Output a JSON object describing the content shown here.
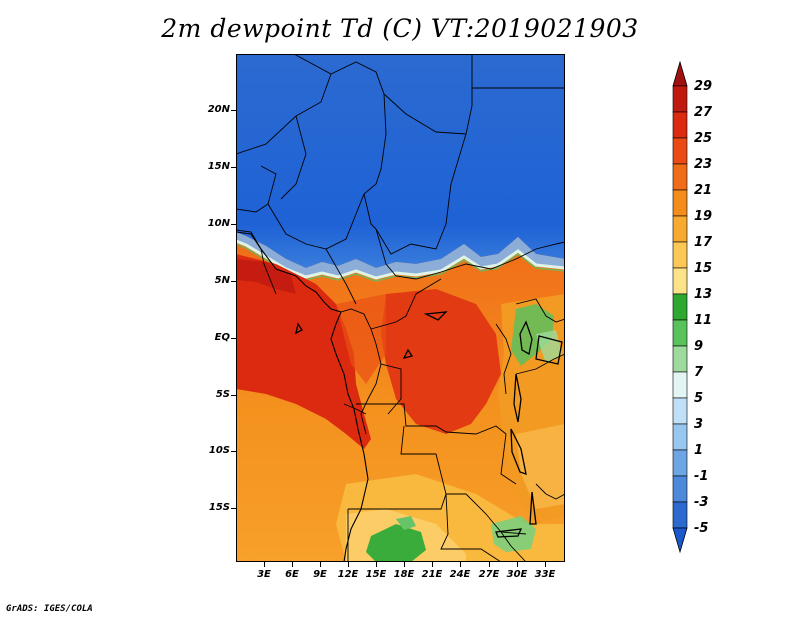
{
  "title": "2m dewpoint Td (C) VT:2019021903",
  "credit": "GrADS: IGES/COLA",
  "y_axis_labels": [
    "20N",
    "15N",
    "10N",
    "5N",
    "EQ",
    "5S",
    "10S",
    "15S"
  ],
  "x_axis_labels": [
    "3E",
    "6E",
    "9E",
    "12E",
    "15E",
    "18E",
    "21E",
    "24E",
    "27E",
    "30E",
    "33E"
  ],
  "colorbar": {
    "labels": [
      "29",
      "27",
      "25",
      "23",
      "21",
      "19",
      "17",
      "15",
      "13",
      "11",
      "9",
      "7",
      "5",
      "3",
      "1",
      "-1",
      "-3",
      "-5"
    ],
    "colors": [
      "#a01010",
      "#c01a10",
      "#dc2a10",
      "#eb4a14",
      "#f06c18",
      "#f48c1c",
      "#f8aa30",
      "#fbc855",
      "#fde388",
      "#2ea830",
      "#5ac25a",
      "#9ed99e",
      "#e4f6f4",
      "#bfe0f6",
      "#97c6ee",
      "#6ea6e4",
      "#4c89da",
      "#2c6ad0",
      "#1a58cc"
    ]
  },
  "colors": {
    "dry_blue": "#1e64d8",
    "moist_red": "#e03a14",
    "orange": "#f2961e"
  }
}
